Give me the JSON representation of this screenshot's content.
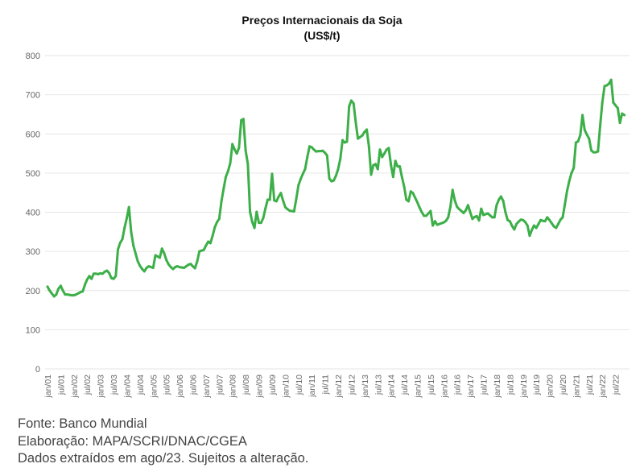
{
  "chart_data": {
    "type": "line",
    "title": "Preços Internacionais da Soja",
    "subtitle": "(US$/t)",
    "xlabel": "",
    "ylabel": "",
    "ylim": [
      0,
      800
    ],
    "yticks": [
      0,
      100,
      200,
      300,
      400,
      500,
      600,
      700,
      800
    ],
    "grid": true,
    "x_start": "2001-01",
    "x_frequency": "monthly",
    "xtick_every_n_points": 6,
    "xtick_labels": [
      "jan/01",
      "jul/01",
      "jan/02",
      "jul/02",
      "jan/03",
      "jul/03",
      "jan/04",
      "jul/04",
      "jan/05",
      "jul/05",
      "jan/06",
      "jul/06",
      "jan/07",
      "jul/07",
      "jan/08",
      "jul/08",
      "jan/09",
      "jul/09",
      "jan/10",
      "jul/10",
      "jan/11",
      "jul/11",
      "jan/12",
      "jul/12",
      "jan/13",
      "jul/13",
      "jan/14",
      "jul/14",
      "jan/15",
      "jul/15",
      "jan/16",
      "jul/16",
      "jan/17",
      "jul/17",
      "jan/18",
      "jul/18",
      "jan/19",
      "jul/19",
      "jan/20",
      "jul/20",
      "jan/21",
      "jul/21",
      "jan/22",
      "jul/22"
    ],
    "series": [
      {
        "name": "Soja (US$/t)",
        "color": "#3daf48",
        "values": [
          210,
          200,
          192,
          185,
          190,
          205,
          212,
          200,
          190,
          190,
          189,
          188,
          188,
          190,
          193,
          196,
          198,
          215,
          228,
          237,
          230,
          243,
          243,
          242,
          244,
          243,
          248,
          251,
          245,
          232,
          230,
          237,
          305,
          322,
          331,
          360,
          385,
          413,
          350,
          315,
          295,
          275,
          263,
          255,
          249,
          258,
          262,
          260,
          258,
          290,
          287,
          284,
          307,
          295,
          278,
          267,
          260,
          255,
          260,
          262,
          260,
          259,
          258,
          262,
          266,
          268,
          262,
          257,
          275,
          300,
          302,
          304,
          315,
          325,
          321,
          340,
          362,
          375,
          383,
          428,
          460,
          490,
          505,
          525,
          574,
          560,
          550,
          565,
          635,
          638,
          558,
          523,
          401,
          375,
          360,
          401,
          373,
          373,
          385,
          410,
          432,
          432,
          498,
          430,
          428,
          440,
          449,
          430,
          413,
          408,
          404,
          403,
          402,
          435,
          469,
          485,
          498,
          510,
          540,
          568,
          566,
          560,
          555,
          556,
          556,
          557,
          552,
          545,
          486,
          479,
          481,
          493,
          510,
          537,
          584,
          578,
          580,
          670,
          685,
          678,
          630,
          588,
          592,
          596,
          605,
          611,
          568,
          496,
          520,
          523,
          510,
          560,
          541,
          550,
          560,
          564,
          520,
          490,
          531,
          517,
          517,
          490,
          465,
          432,
          428,
          453,
          449,
          437,
          425,
          412,
          400,
          391,
          391,
          397,
          403,
          366,
          377,
          368,
          370,
          372,
          374,
          378,
          387,
          414,
          457,
          430,
          414,
          408,
          403,
          398,
          405,
          418,
          400,
          383,
          388,
          390,
          379,
          409,
          393,
          395,
          397,
          392,
          387,
          387,
          418,
          432,
          440,
          429,
          400,
          380,
          377,
          365,
          356,
          370,
          376,
          381,
          380,
          375,
          366,
          340,
          355,
          366,
          360,
          370,
          380,
          378,
          377,
          387,
          380,
          372,
          364,
          360,
          370,
          381,
          387,
          420,
          455,
          480,
          500,
          513,
          578,
          581,
          597,
          648,
          610,
          598,
          588,
          558,
          553,
          553,
          555,
          620,
          680,
          722,
          724,
          728,
          738,
          680,
          673,
          666,
          628,
          652,
          648
        ]
      }
    ]
  },
  "footer": {
    "source": "Fonte: Banco Mundial",
    "prepared_by": "Elaboração: MAPA/SCRI/DNAC/CGEA",
    "note": "Dados extraídos em ago/23. Sujeitos a alteração."
  }
}
